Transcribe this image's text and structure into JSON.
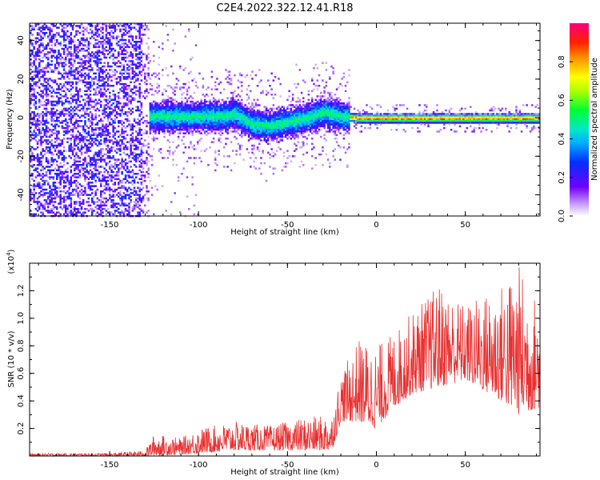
{
  "figure": {
    "title": "C2E4.2022.322.12.41.R18"
  },
  "chart_data": [
    {
      "type": "heatmap",
      "xlabel": "Height of straight line (km)",
      "ylabel": "Frequency (Hz)",
      "xlim": [
        -195,
        92
      ],
      "ylim": [
        -51,
        49
      ],
      "xticks": [
        -150,
        -100,
        -50,
        0,
        50
      ],
      "yticks": [
        -40,
        -20,
        0,
        20,
        40
      ],
      "colorbar": {
        "label": "Normalized spectral amplitude",
        "range": [
          0,
          1
        ],
        "ticks": [
          "0.0",
          "0.2",
          "0.4",
          "0.6",
          "0.8"
        ],
        "colormap": "rainbow (white at 0, violet-blue-cyan-green-yellow-orange-red-magenta)"
      },
      "ridge": [
        {
          "x": -130,
          "y": 1
        },
        {
          "x": -110,
          "y": 1
        },
        {
          "x": -90,
          "y": 1
        },
        {
          "x": -80,
          "y": 2
        },
        {
          "x": -70,
          "y": -3
        },
        {
          "x": -60,
          "y": -4
        },
        {
          "x": -50,
          "y": -2
        },
        {
          "x": -40,
          "y": 0
        },
        {
          "x": -30,
          "y": 3
        },
        {
          "x": -20,
          "y": 1
        },
        {
          "x": -10,
          "y": 0
        },
        {
          "x": 0,
          "y": 0
        },
        {
          "x": 50,
          "y": 0
        },
        {
          "x": 90,
          "y": 0
        }
      ],
      "grid": false,
      "legend": "colorbar right"
    },
    {
      "type": "line",
      "xlabel": "Height of straight line (km)",
      "ylabel": "SNR (10 * v/v)",
      "ylabel_multiplier": "(x10^4)",
      "xlim": [
        -195,
        92
      ],
      "ylim": [
        0,
        1.4
      ],
      "xticks": [
        -150,
        -100,
        -50,
        0,
        50
      ],
      "yticks": [
        "0.2",
        "0.4",
        "0.6",
        "0.8",
        "1.0",
        "1.2"
      ],
      "series": [
        {
          "color": "#e83030",
          "envelope": [
            {
              "x": -195,
              "low": 0.0,
              "high": 0.02
            },
            {
              "x": -150,
              "low": 0.0,
              "high": 0.02
            },
            {
              "x": -130,
              "low": 0.0,
              "high": 0.04
            },
            {
              "x": -125,
              "low": 0.0,
              "high": 0.16
            },
            {
              "x": -110,
              "low": 0.01,
              "high": 0.13
            },
            {
              "x": -100,
              "low": 0.02,
              "high": 0.2
            },
            {
              "x": -80,
              "low": 0.04,
              "high": 0.25
            },
            {
              "x": -60,
              "low": 0.04,
              "high": 0.22
            },
            {
              "x": -40,
              "low": 0.04,
              "high": 0.28
            },
            {
              "x": -25,
              "low": 0.04,
              "high": 0.3
            },
            {
              "x": -20,
              "low": 0.25,
              "high": 0.6
            },
            {
              "x": -10,
              "low": 0.25,
              "high": 0.85
            },
            {
              "x": 0,
              "low": 0.2,
              "high": 0.8
            },
            {
              "x": 10,
              "low": 0.35,
              "high": 0.9
            },
            {
              "x": 20,
              "low": 0.45,
              "high": 1.05
            },
            {
              "x": 35,
              "low": 0.5,
              "high": 1.25
            },
            {
              "x": 50,
              "low": 0.55,
              "high": 1.1
            },
            {
              "x": 70,
              "low": 0.4,
              "high": 1.25
            },
            {
              "x": 80,
              "low": 0.3,
              "high": 1.4
            },
            {
              "x": 92,
              "low": 0.35,
              "high": 1.1
            }
          ]
        }
      ],
      "grid": false
    }
  ]
}
